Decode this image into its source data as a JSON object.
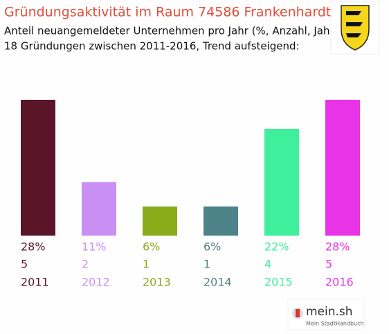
{
  "chart_data": {
    "type": "bar",
    "title": "Gründungsaktivität im Raum 74586 Frankenhardt",
    "subtitle": [
      "Anteil neuangemeldeter Unternehmen pro Jahr (%, Anzahl, Jahr)",
      "18 Gründungen zwischen 2011-2016, Trend aufsteigend:"
    ],
    "categories": [
      "2011",
      "2012",
      "2013",
      "2014",
      "2015",
      "2016"
    ],
    "values": [
      28,
      11,
      6,
      6,
      22,
      28
    ],
    "value_labels": [
      "28%",
      "11%",
      "6%",
      "6%",
      "22%",
      "28%"
    ],
    "counts": [
      5,
      2,
      1,
      1,
      4,
      5
    ],
    "colors": [
      "#5a1529",
      "#c98ff2",
      "#8aab1a",
      "#4e8289",
      "#3ef09b",
      "#e833e6"
    ],
    "footer": {
      "brand": "mein.sh",
      "tagline": "Mein StadtHandbuch"
    }
  }
}
